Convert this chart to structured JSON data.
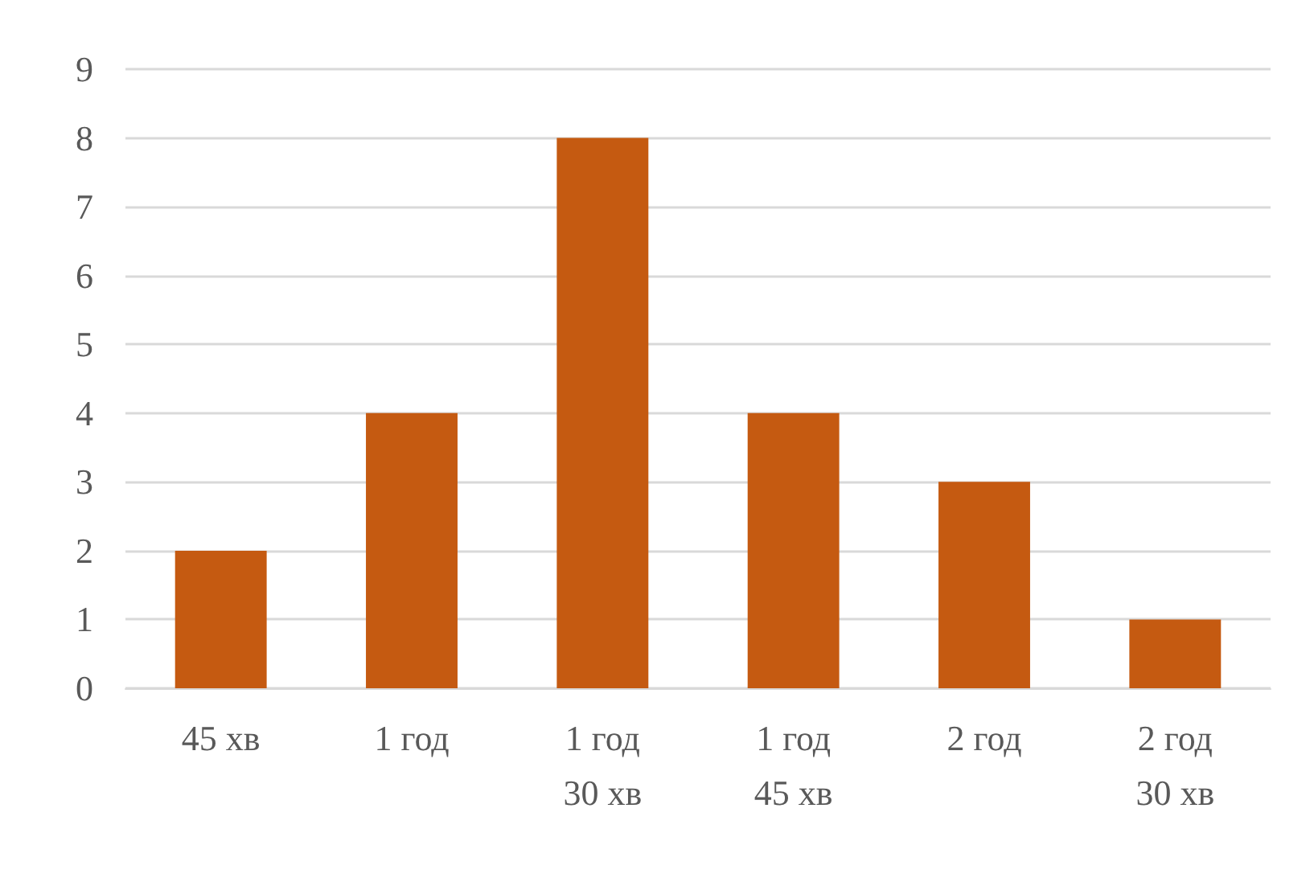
{
  "chart_data": {
    "type": "bar",
    "categories": [
      "45 хв",
      "1 год",
      "1 год\n30 хв",
      "1 год\n45 хв",
      "2 год",
      "2 год\n30 хв"
    ],
    "values": [
      2,
      4,
      8,
      4,
      3,
      1
    ],
    "color": "#c55a11",
    "ylim": [
      0,
      9
    ],
    "yticks": [
      0,
      1,
      2,
      3,
      4,
      5,
      6,
      7,
      8,
      9
    ],
    "grid": "y"
  }
}
